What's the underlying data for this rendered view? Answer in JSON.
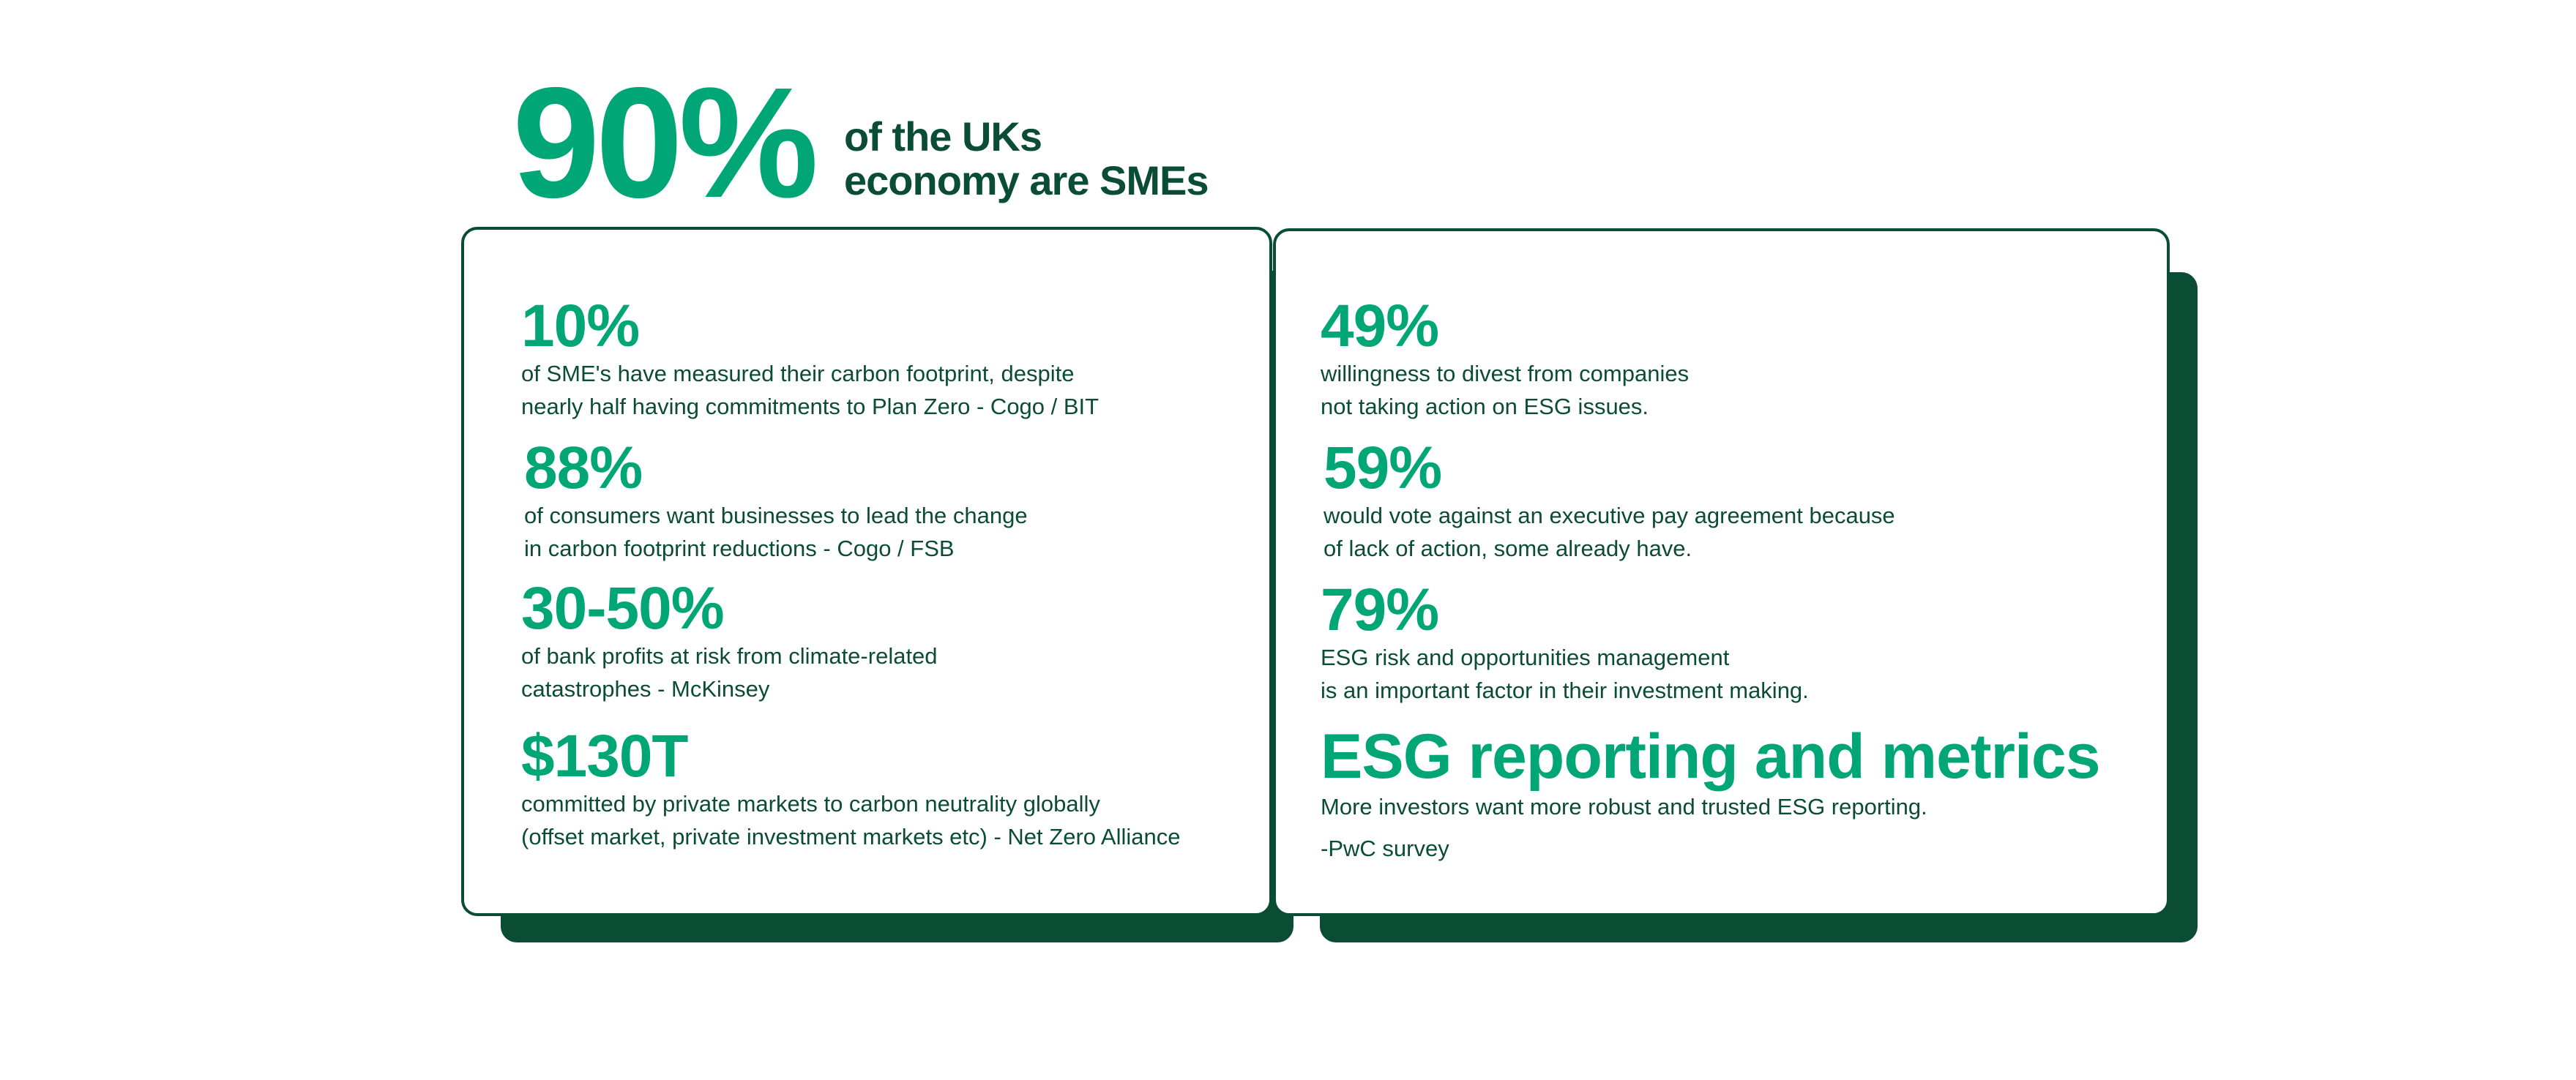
{
  "headline": {
    "value": "90%",
    "line1": "of the UKs",
    "line2": "economy are SMEs"
  },
  "left_card": {
    "stats": [
      {
        "value": "10%",
        "lines": [
          "of SME's have measured their carbon footprint, despite",
          "nearly half having commitments to Plan Zero - Cogo / BIT"
        ]
      },
      {
        "value": "88%",
        "lines": [
          "of consumers want businesses to lead the change",
          "in carbon footprint reductions - Cogo / FSB"
        ]
      },
      {
        "value": "30-50%",
        "lines": [
          "of bank profits at risk from climate-related",
          "catastrophes - McKinsey"
        ]
      },
      {
        "value": "$130T",
        "lines": [
          "committed by private markets to carbon neutrality globally",
          "(offset market, private investment markets etc) - Net Zero Alliance"
        ]
      }
    ]
  },
  "right_card": {
    "stats": [
      {
        "value": "49%",
        "lines": [
          "willingness to divest from companies",
          "not taking action on ESG issues."
        ]
      },
      {
        "value": "59%",
        "lines": [
          "would vote against an executive pay agreement because",
          "of lack of action, some already have."
        ]
      },
      {
        "value": "79%",
        "lines": [
          "ESG risk and opportunities management",
          "is an important factor in their investment making."
        ]
      }
    ],
    "esg": {
      "title": "ESG reporting and metrics",
      "line": "More investors want more robust and trusted ESG reporting.",
      "source": "-PwC survey"
    }
  },
  "colors": {
    "accent_green": "#00a676",
    "dark_green": "#0b4d34",
    "background": "#ffffff"
  }
}
